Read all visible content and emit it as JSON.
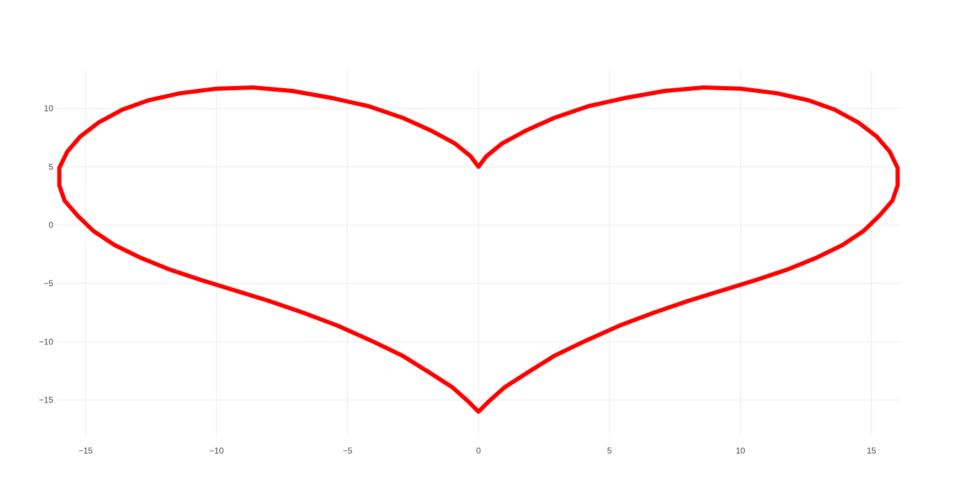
{
  "chart_data": {
    "type": "line",
    "title": "",
    "xlabel": "",
    "ylabel": "",
    "xlim": [
      -16.1,
      16.1
    ],
    "ylim": [
      -18.2,
      13.3
    ],
    "x_ticks": [
      -15,
      -10,
      -5,
      0,
      5,
      10,
      15
    ],
    "x_tick_labels": [
      "−15",
      "−10",
      "−5",
      "0",
      "5",
      "10",
      "15"
    ],
    "y_ticks": [
      10,
      5,
      0,
      -5,
      -10,
      -15
    ],
    "y_tick_labels": [
      "10",
      "5",
      "0",
      "−5",
      "−10",
      "−15"
    ],
    "grid": true,
    "legend": "none",
    "series": [
      {
        "color": "#ff0000",
        "line_width": 6,
        "x": [
          0,
          0.3,
          0.9,
          1.8,
          2.9,
          4.2,
          5.6,
          7.1,
          8.6,
          10.0,
          11.4,
          12.6,
          13.6,
          14.5,
          15.2,
          15.7,
          16.0,
          16.0,
          15.8,
          15.3,
          14.7,
          13.9,
          12.9,
          11.8,
          10.6,
          9.3,
          8.0,
          6.7,
          5.4,
          4.1,
          2.9,
          1.9,
          1.0,
          0.4,
          0,
          -0.4,
          -1.0,
          -1.9,
          -2.9,
          -4.1,
          -5.4,
          -6.7,
          -8.0,
          -9.3,
          -10.6,
          -11.8,
          -12.9,
          -13.9,
          -14.7,
          -15.3,
          -15.8,
          -16.0,
          -16.0,
          -15.7,
          -15.2,
          -14.5,
          -13.6,
          -12.6,
          -11.4,
          -10.0,
          -8.6,
          -7.1,
          -5.6,
          -4.2,
          -2.9,
          -1.8,
          -0.9,
          -0.3,
          0
        ],
        "y": [
          5.0,
          5.9,
          7.0,
          8.1,
          9.2,
          10.2,
          10.9,
          11.5,
          11.8,
          11.7,
          11.3,
          10.7,
          9.9,
          8.8,
          7.6,
          6.3,
          4.9,
          3.4,
          2.1,
          0.8,
          -0.5,
          -1.7,
          -2.8,
          -3.8,
          -4.7,
          -5.6,
          -6.5,
          -7.5,
          -8.6,
          -9.9,
          -11.2,
          -12.6,
          -13.9,
          -15.1,
          -16.0,
          -15.1,
          -13.9,
          -12.6,
          -11.2,
          -9.9,
          -8.6,
          -7.5,
          -6.5,
          -5.6,
          -4.7,
          -3.8,
          -2.8,
          -1.7,
          -0.5,
          0.8,
          2.1,
          3.4,
          4.9,
          6.3,
          7.6,
          8.8,
          9.9,
          10.7,
          11.3,
          11.7,
          11.8,
          11.5,
          10.9,
          10.2,
          9.2,
          8.1,
          7.0,
          5.9,
          5.0
        ]
      }
    ]
  }
}
